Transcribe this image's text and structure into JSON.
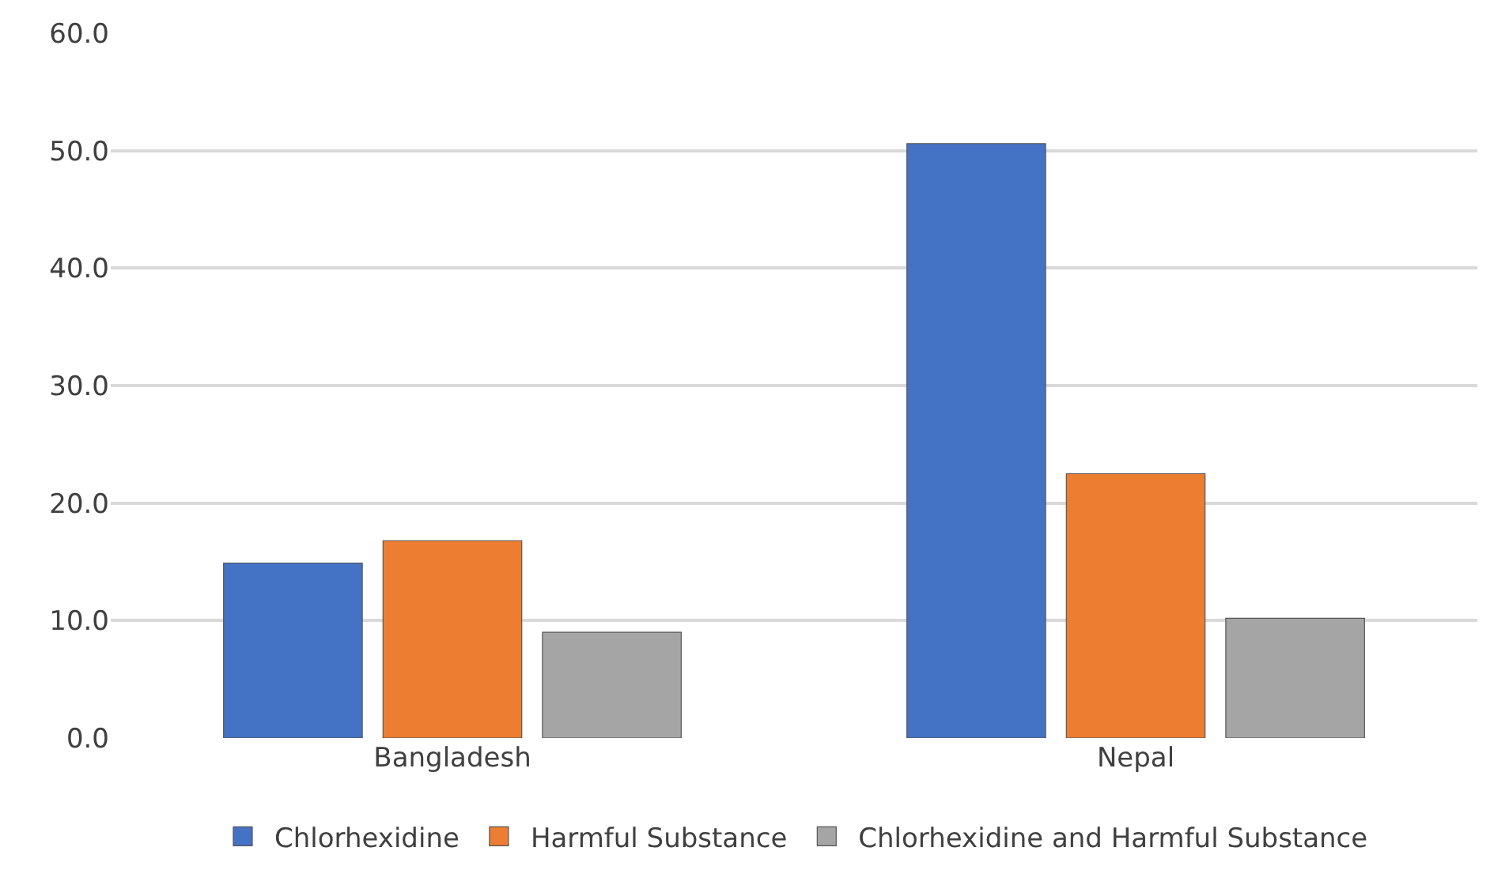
{
  "chart_data": {
    "type": "bar",
    "categories": [
      "Bangladesh",
      "Nepal"
    ],
    "series": [
      {
        "name": "Chlorhexidine",
        "color": "#4472c4",
        "values": [
          14.9,
          50.6
        ]
      },
      {
        "name": "Harmful Substance",
        "color": "#ed7d31",
        "values": [
          16.8,
          22.5
        ]
      },
      {
        "name": "Chlorhexidine and Harmful Substance",
        "color": "#a5a5a5",
        "values": [
          9.0,
          10.2
        ]
      }
    ],
    "ylim": [
      0,
      60
    ],
    "yticks": [
      {
        "value": 0,
        "label": "0.0"
      },
      {
        "value": 10,
        "label": "10.0"
      },
      {
        "value": 20,
        "label": "20.0"
      },
      {
        "value": 30,
        "label": "30.0"
      },
      {
        "value": 40,
        "label": "40.0"
      },
      {
        "value": 50,
        "label": "50.0"
      },
      {
        "value": 60,
        "label": "60.0"
      }
    ],
    "grid": "y",
    "legend": "bottom"
  }
}
